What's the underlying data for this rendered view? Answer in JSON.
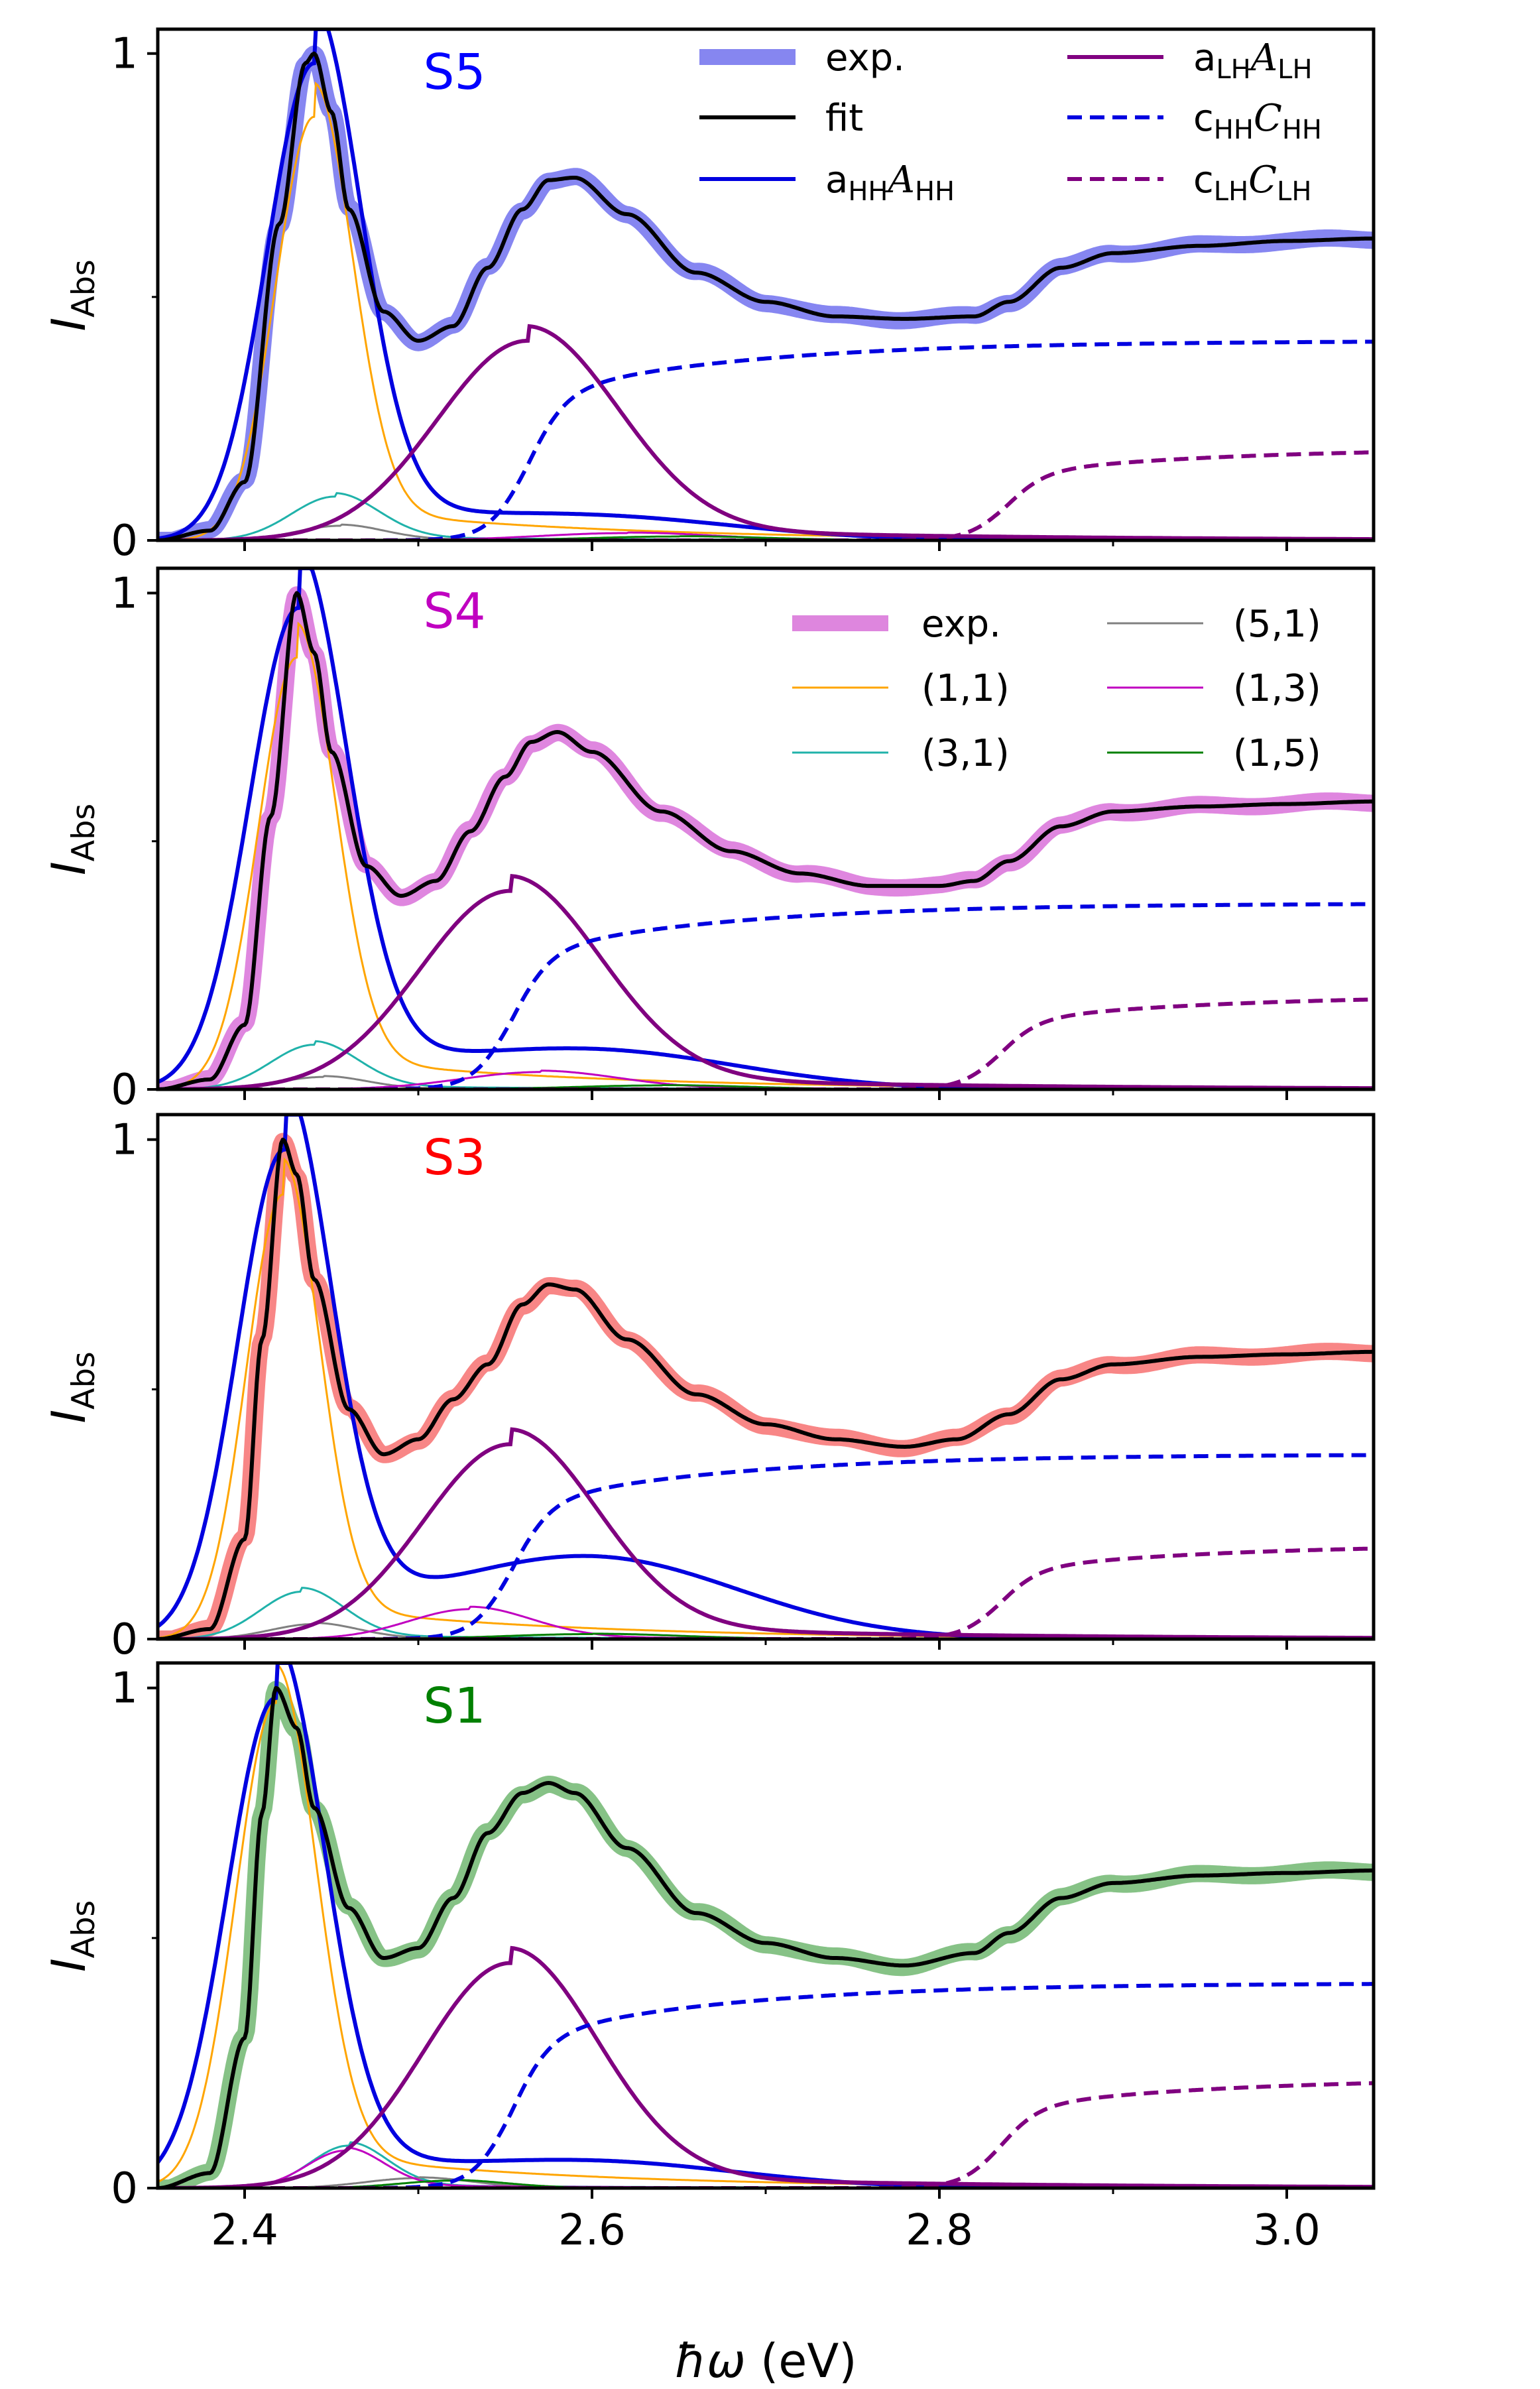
{
  "chart_data": {
    "type": "line",
    "x_axis": {
      "label_symbol": "ħω",
      "label_unit": " (eV)",
      "range": [
        2.35,
        3.05
      ],
      "ticks": [
        2.4,
        2.6,
        2.8,
        3.0
      ],
      "tick_labels": [
        "2.4",
        "2.6",
        "2.8",
        "3.0"
      ],
      "minor_ticks": [
        2.5,
        2.7,
        2.9
      ]
    },
    "y_axis": {
      "label_main": "I",
      "label_sub": "Abs",
      "range": [
        0,
        1.05
      ],
      "tick_labels": [
        "0",
        "1"
      ],
      "tick_values": [
        0,
        1
      ],
      "minor_ticks": [
        0.5
      ]
    },
    "colors": {
      "exp_S5": "#8080f0",
      "exp_S4": "#dd80dd",
      "exp_S3": "#f88080",
      "exp_S1": "#80bf80",
      "fit": "#000000",
      "aHH": "#0000e0",
      "aLH": "#800080",
      "cHH": "#0000e0",
      "cLH": "#800080",
      "p11": "#ffa500",
      "p31": "#20b2aa",
      "p51": "#808080",
      "p13": "#c000c0",
      "p15": "#008000"
    },
    "legend_main": [
      {
        "key": "exp",
        "text": "exp.",
        "style": "thick",
        "color": "#8080f0"
      },
      {
        "key": "fit",
        "text": "fit",
        "style": "solid",
        "color": "#000000"
      },
      {
        "key": "aHH",
        "text": "aHHAHH",
        "base": "a",
        "sub": "HH",
        "script": "A",
        "sub2": "HH",
        "style": "solid",
        "color": "#0000e0"
      },
      {
        "key": "aLH",
        "text": "aLHALH",
        "base": "a",
        "sub": "LH",
        "script": "A",
        "sub2": "LH",
        "style": "solid",
        "color": "#800080"
      },
      {
        "key": "cHH",
        "text": "cHHCHH",
        "base": "c",
        "sub": "HH",
        "script": "C",
        "sub2": "HH",
        "style": "dashed",
        "color": "#0000e0"
      },
      {
        "key": "cLH",
        "text": "cLHCLH",
        "base": "c",
        "sub": "LH",
        "script": "C",
        "sub2": "LH",
        "style": "dashed",
        "color": "#800080"
      }
    ],
    "legend_transitions": [
      {
        "key": "exp",
        "text": "exp.",
        "style": "thick",
        "color": "#dd80dd"
      },
      {
        "key": "p11",
        "text": "(1,1)",
        "style": "thin",
        "color": "#ffa500"
      },
      {
        "key": "p31",
        "text": "(3,1)",
        "style": "thin",
        "color": "#20b2aa"
      },
      {
        "key": "p51",
        "text": "(5,1)",
        "style": "thin",
        "color": "#808080"
      },
      {
        "key": "p13",
        "text": "(1,3)",
        "style": "thin",
        "color": "#c000c0"
      },
      {
        "key": "p15",
        "text": "(1,5)",
        "style": "thin",
        "color": "#008000"
      }
    ],
    "panels": [
      {
        "label": "S5",
        "label_color": "#0000ff",
        "exp_color": "#8080f0",
        "peaks": {
          "p11": {
            "amp": 0.87,
            "center": 2.44,
            "width": 0.022
          },
          "p31": {
            "amp": 0.09,
            "center": 2.452,
            "width": 0.025
          },
          "p51": {
            "amp": 0.03,
            "center": 2.455,
            "width": 0.025
          },
          "p13": {
            "amp": 0.015,
            "center": 2.62,
            "width": 0.05
          },
          "p15": {
            "amp": 0.008,
            "center": 2.65,
            "width": 0.05
          }
        },
        "aHH": {
          "amp": 0.98,
          "center": 2.44,
          "width": 0.027,
          "tail_amp": 0.045
        },
        "aLH": {
          "amp": 0.41,
          "center": 2.563,
          "width": 0.052
        },
        "cHH": {
          "amp": 0.41,
          "onset": 2.562
        },
        "cLH": {
          "amp": 0.19,
          "onset": 2.838
        },
        "fit_points": [
          [
            2.35,
            0.0
          ],
          [
            2.38,
            0.02
          ],
          [
            2.4,
            0.12
          ],
          [
            2.42,
            0.65
          ],
          [
            2.435,
            0.98
          ],
          [
            2.44,
            1.0
          ],
          [
            2.45,
            0.88
          ],
          [
            2.46,
            0.68
          ],
          [
            2.48,
            0.47
          ],
          [
            2.5,
            0.41
          ],
          [
            2.52,
            0.44
          ],
          [
            2.54,
            0.56
          ],
          [
            2.56,
            0.68
          ],
          [
            2.575,
            0.74
          ],
          [
            2.59,
            0.745
          ],
          [
            2.62,
            0.67
          ],
          [
            2.66,
            0.55
          ],
          [
            2.7,
            0.49
          ],
          [
            2.74,
            0.46
          ],
          [
            2.78,
            0.455
          ],
          [
            2.82,
            0.46
          ],
          [
            2.84,
            0.49
          ],
          [
            2.87,
            0.56
          ],
          [
            2.9,
            0.59
          ],
          [
            2.95,
            0.605
          ],
          [
            3.0,
            0.615
          ],
          [
            3.05,
            0.62
          ]
        ]
      },
      {
        "label": "S4",
        "label_color": "#c000c0",
        "exp_color": "#dd80dd",
        "peaks": {
          "p11": {
            "amp": 0.87,
            "center": 2.43,
            "width": 0.022
          },
          "p31": {
            "amp": 0.09,
            "center": 2.44,
            "width": 0.025
          },
          "p51": {
            "amp": 0.025,
            "center": 2.445,
            "width": 0.025
          },
          "p13": {
            "amp": 0.035,
            "center": 2.57,
            "width": 0.045
          },
          "p15": {
            "amp": 0.008,
            "center": 2.64,
            "width": 0.05
          }
        },
        "aHH": {
          "amp": 0.97,
          "center": 2.431,
          "width": 0.028,
          "tail_amp": 0.075
        },
        "aLH": {
          "amp": 0.4,
          "center": 2.553,
          "width": 0.052
        },
        "cHH": {
          "amp": 0.375,
          "onset": 2.553
        },
        "cLH": {
          "amp": 0.19,
          "onset": 2.834
        },
        "fit_points": [
          [
            2.35,
            0.0
          ],
          [
            2.38,
            0.02
          ],
          [
            2.4,
            0.13
          ],
          [
            2.415,
            0.55
          ],
          [
            2.43,
            1.0
          ],
          [
            2.44,
            0.88
          ],
          [
            2.45,
            0.68
          ],
          [
            2.47,
            0.45
          ],
          [
            2.49,
            0.39
          ],
          [
            2.51,
            0.42
          ],
          [
            2.53,
            0.52
          ],
          [
            2.55,
            0.63
          ],
          [
            2.565,
            0.7
          ],
          [
            2.58,
            0.72
          ],
          [
            2.6,
            0.68
          ],
          [
            2.64,
            0.56
          ],
          [
            2.68,
            0.48
          ],
          [
            2.72,
            0.435
          ],
          [
            2.76,
            0.41
          ],
          [
            2.8,
            0.41
          ],
          [
            2.82,
            0.42
          ],
          [
            2.84,
            0.46
          ],
          [
            2.87,
            0.53
          ],
          [
            2.9,
            0.56
          ],
          [
            2.95,
            0.57
          ],
          [
            3.0,
            0.575
          ],
          [
            3.05,
            0.58
          ]
        ]
      },
      {
        "label": "S3",
        "label_color": "#ff0000",
        "exp_color": "#f88080",
        "peaks": {
          "p11": {
            "amp": 0.89,
            "center": 2.422,
            "width": 0.021
          },
          "p31": {
            "amp": 0.095,
            "center": 2.433,
            "width": 0.024
          },
          "p51": {
            "amp": 0.03,
            "center": 2.44,
            "width": 0.025
          },
          "p13": {
            "amp": 0.06,
            "center": 2.53,
            "width": 0.035
          },
          "p15": {
            "amp": 0.01,
            "center": 2.6,
            "width": 0.05
          }
        },
        "aHH": {
          "amp": 0.98,
          "center": 2.423,
          "width": 0.027,
          "tail_amp": 0.16
        },
        "aLH": {
          "amp": 0.39,
          "center": 2.553,
          "width": 0.05
        },
        "cHH": {
          "amp": 0.37,
          "onset": 2.553
        },
        "cLH": {
          "amp": 0.19,
          "onset": 2.834
        },
        "fit_points": [
          [
            2.35,
            0.0
          ],
          [
            2.38,
            0.02
          ],
          [
            2.4,
            0.2
          ],
          [
            2.41,
            0.6
          ],
          [
            2.422,
            1.0
          ],
          [
            2.43,
            0.93
          ],
          [
            2.44,
            0.72
          ],
          [
            2.46,
            0.46
          ],
          [
            2.48,
            0.37
          ],
          [
            2.5,
            0.4
          ],
          [
            2.52,
            0.48
          ],
          [
            2.54,
            0.55
          ],
          [
            2.56,
            0.67
          ],
          [
            2.575,
            0.71
          ],
          [
            2.59,
            0.7
          ],
          [
            2.62,
            0.6
          ],
          [
            2.66,
            0.49
          ],
          [
            2.7,
            0.43
          ],
          [
            2.74,
            0.4
          ],
          [
            2.78,
            0.385
          ],
          [
            2.81,
            0.4
          ],
          [
            2.84,
            0.45
          ],
          [
            2.87,
            0.52
          ],
          [
            2.9,
            0.55
          ],
          [
            2.95,
            0.565
          ],
          [
            3.0,
            0.57
          ],
          [
            3.05,
            0.575
          ]
        ]
      },
      {
        "label": "S1",
        "label_color": "#008000",
        "exp_color": "#80bf80",
        "peaks": {
          "p11": {
            "amp": 0.97,
            "center": 2.418,
            "width": 0.023
          },
          "p31": {
            "amp": 0.085,
            "center": 2.46,
            "width": 0.022
          },
          "p51": {
            "amp": 0.02,
            "center": 2.5,
            "width": 0.03
          },
          "p13": {
            "amp": 0.075,
            "center": 2.458,
            "width": 0.022
          },
          "p15": {
            "amp": 0.015,
            "center": 2.52,
            "width": 0.03
          }
        },
        "aHH": {
          "amp": 0.98,
          "center": 2.418,
          "width": 0.028,
          "tail_amp": 0.05
        },
        "aLH": {
          "amp": 0.45,
          "center": 2.553,
          "width": 0.05
        },
        "cHH": {
          "amp": 0.41,
          "onset": 2.553
        },
        "cLH": {
          "amp": 0.22,
          "onset": 2.834
        },
        "fit_points": [
          [
            2.35,
            0.0
          ],
          [
            2.38,
            0.03
          ],
          [
            2.4,
            0.3
          ],
          [
            2.41,
            0.75
          ],
          [
            2.418,
            1.0
          ],
          [
            2.43,
            0.92
          ],
          [
            2.44,
            0.76
          ],
          [
            2.46,
            0.56
          ],
          [
            2.48,
            0.46
          ],
          [
            2.5,
            0.48
          ],
          [
            2.52,
            0.58
          ],
          [
            2.54,
            0.71
          ],
          [
            2.56,
            0.79
          ],
          [
            2.575,
            0.81
          ],
          [
            2.59,
            0.79
          ],
          [
            2.62,
            0.68
          ],
          [
            2.66,
            0.55
          ],
          [
            2.7,
            0.49
          ],
          [
            2.74,
            0.46
          ],
          [
            2.78,
            0.445
          ],
          [
            2.82,
            0.47
          ],
          [
            2.84,
            0.51
          ],
          [
            2.87,
            0.58
          ],
          [
            2.9,
            0.61
          ],
          [
            2.95,
            0.625
          ],
          [
            3.0,
            0.63
          ],
          [
            3.05,
            0.635
          ]
        ]
      }
    ]
  }
}
